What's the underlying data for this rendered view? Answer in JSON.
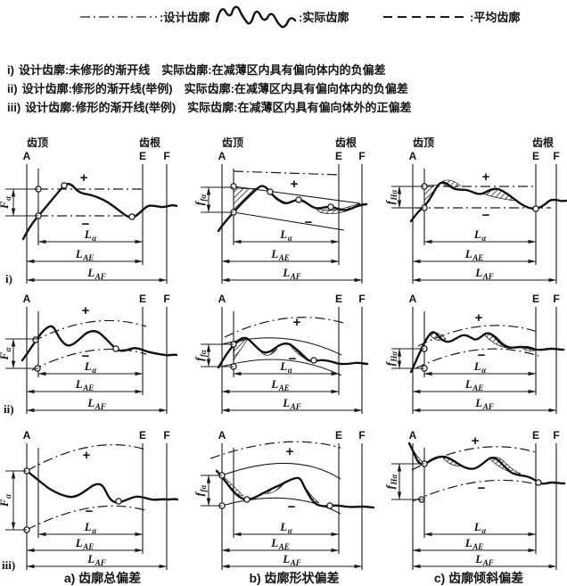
{
  "legend": {
    "separator": ":",
    "items": [
      {
        "name": "design-profile",
        "style": "dashdot",
        "label": "设计齿廓"
      },
      {
        "name": "actual-profile",
        "style": "wavy",
        "label": "实际齿廓"
      },
      {
        "name": "mean-profile",
        "style": "dashed",
        "label": "平均齿廓"
      }
    ]
  },
  "notes": [
    {
      "index": "i)",
      "design": "设计齿廓:未修形的渐开线",
      "actual": "实际齿廓:在减薄区内具有偏向体内的负偏差"
    },
    {
      "index": "ii)",
      "design": "设计齿廓:修形的渐开线(举例)",
      "actual": "实际齿廓:在减薄区内具有偏向体内的负偏差"
    },
    {
      "index": "iii)",
      "design": "设计齿廓:修形的渐开线(举例)",
      "actual": "实际齿廓:在减薄区内具有偏向体外的正偏差"
    }
  ],
  "diagram": {
    "headers": {
      "tip": "齿顶",
      "root": "齿根"
    },
    "letters": [
      "A",
      "E",
      "F"
    ],
    "signs": {
      "plus": "+",
      "minus": "−"
    },
    "row_indices": [
      "i)",
      "ii)",
      "iii)"
    ],
    "deviation_symbols": {
      "total": {
        "main": "F",
        "sub": "α"
      },
      "form": {
        "main": "f",
        "sub": "fα"
      },
      "slope": {
        "main": "f",
        "sub": "Hα"
      }
    },
    "length_symbols": [
      {
        "main": "L",
        "sub": "α"
      },
      {
        "main": "L",
        "sub": "AE"
      },
      {
        "main": "L",
        "sub": "AF"
      }
    ],
    "captions": [
      "a) 齿廓总偏差",
      "b) 齿廓形状偏差",
      "c) 齿廓倾斜偏差"
    ]
  },
  "colors": {
    "ink": "#1a1a1a",
    "paper": "#ffffff"
  }
}
